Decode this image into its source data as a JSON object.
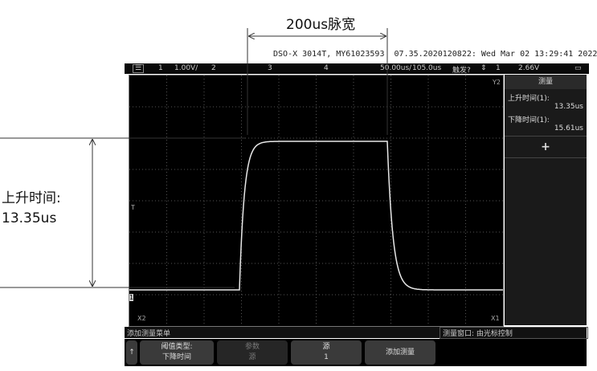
{
  "annotations": {
    "pulse_width": "200us脉宽",
    "rise_label": "上升时间:",
    "rise_value": "13.35us"
  },
  "header": {
    "model": "DSO-X 3014T, MY61023593",
    "firmware_date": "07.35.2020120822: Wed Mar 02 13:29:41 2022"
  },
  "topbar": {
    "ch1": "1",
    "ch1_scale": "1.00V/",
    "ch2": "2",
    "ch3": "3",
    "ch4": "4",
    "timebase": "50.00us/",
    "delay": "105.0us",
    "trigger": "触发?",
    "trig_src": "1",
    "trig_level": "2.66V"
  },
  "panel": {
    "title": "测量",
    "m1_label": "上升时间(1):",
    "m1_value": "13.35us",
    "m2_label": "下降时间(1):",
    "m2_value": "15.61us",
    "add": "+"
  },
  "markers": {
    "ch1": "1",
    "x1": "X1",
    "x2": "X2",
    "y2": "Y2",
    "trig": "T"
  },
  "message": {
    "left": "添加测量菜单",
    "right": "测量窗口: 由光标控制"
  },
  "softkeys": {
    "type_label": "阈值类型:",
    "type_value": "下降时间",
    "param_label": "参数",
    "param_value": "源",
    "source_label": "源",
    "source_value": "1",
    "add": "添加测量"
  },
  "colors": {
    "trace": "#e8e8e8",
    "screen": "#000000"
  }
}
